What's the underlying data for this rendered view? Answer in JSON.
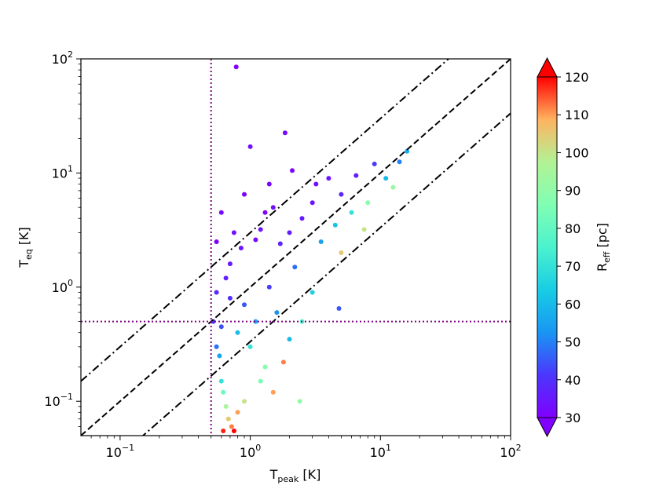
{
  "chart_data": {
    "type": "scatter",
    "xscale": "log",
    "yscale": "log",
    "xlim": [
      0.05,
      100
    ],
    "ylim": [
      0.05,
      100
    ],
    "xlabel": {
      "base": "T",
      "sub": "peak",
      "unit": " [K]"
    },
    "ylabel": {
      "base": "T",
      "sub": "eq",
      "unit": " [K]"
    },
    "x_ticks": [
      {
        "value": 0.1,
        "base": "10",
        "exp": "−1"
      },
      {
        "value": 1,
        "base": "10",
        "exp": "0"
      },
      {
        "value": 10,
        "base": "10",
        "exp": "1"
      },
      {
        "value": 100,
        "base": "10",
        "exp": "2"
      }
    ],
    "y_ticks": [
      {
        "value": 0.1,
        "base": "10",
        "exp": "−1"
      },
      {
        "value": 1,
        "base": "10",
        "exp": "0"
      },
      {
        "value": 10,
        "base": "10",
        "exp": "1"
      },
      {
        "value": 100,
        "base": "10",
        "exp": "2"
      }
    ],
    "reference_lines": [
      {
        "kind": "ratio",
        "ratio": 3,
        "style": "dashdot",
        "color": "#000000"
      },
      {
        "kind": "ratio",
        "ratio": 1,
        "style": "dashed",
        "color": "#000000"
      },
      {
        "kind": "ratio",
        "ratio": 0.333,
        "style": "dashdot",
        "color": "#000000"
      },
      {
        "kind": "vertical",
        "x": 0.5,
        "style": "dotted",
        "color": "#800080"
      },
      {
        "kind": "horizontal",
        "y": 0.5,
        "style": "dotted",
        "color": "#800080"
      }
    ],
    "colorbar": {
      "colormap": "rainbow",
      "label": {
        "base": "R",
        "sub": "eff",
        "unit": " [pc]"
      },
      "min": 30,
      "max": 120,
      "ticks": [
        "30",
        "40",
        "50",
        "60",
        "70",
        "80",
        "90",
        "100",
        "110",
        "120"
      ],
      "extend": "both"
    },
    "points": [
      {
        "x": 0.78,
        "y": 85,
        "c": 30
      },
      {
        "x": 1.85,
        "y": 22.5,
        "c": 32
      },
      {
        "x": 1.0,
        "y": 17,
        "c": 33
      },
      {
        "x": 0.9,
        "y": 6.5,
        "c": 31
      },
      {
        "x": 0.55,
        "y": 2.5,
        "c": 30
      },
      {
        "x": 0.6,
        "y": 4.5,
        "c": 32
      },
      {
        "x": 1.2,
        "y": 3.2,
        "c": 34
      },
      {
        "x": 1.5,
        "y": 5.0,
        "c": 33
      },
      {
        "x": 1.4,
        "y": 8.0,
        "c": 32
      },
      {
        "x": 2.1,
        "y": 10.5,
        "c": 31
      },
      {
        "x": 3.2,
        "y": 8.0,
        "c": 33
      },
      {
        "x": 4.0,
        "y": 9.0,
        "c": 34
      },
      {
        "x": 6.5,
        "y": 9.5,
        "c": 36
      },
      {
        "x": 0.7,
        "y": 1.6,
        "c": 35
      },
      {
        "x": 0.85,
        "y": 2.2,
        "c": 34
      },
      {
        "x": 1.1,
        "y": 2.6,
        "c": 32
      },
      {
        "x": 0.65,
        "y": 1.2,
        "c": 36
      },
      {
        "x": 0.75,
        "y": 3.0,
        "c": 33
      },
      {
        "x": 1.3,
        "y": 4.5,
        "c": 31
      },
      {
        "x": 2.5,
        "y": 4.0,
        "c": 35
      },
      {
        "x": 3.0,
        "y": 5.5,
        "c": 34
      },
      {
        "x": 2.0,
        "y": 3.0,
        "c": 36
      },
      {
        "x": 1.7,
        "y": 2.4,
        "c": 37
      },
      {
        "x": 5.0,
        "y": 6.5,
        "c": 38
      },
      {
        "x": 9.0,
        "y": 12.0,
        "c": 42
      },
      {
        "x": 16.0,
        "y": 15.5,
        "c": 57
      },
      {
        "x": 14.0,
        "y": 12.5,
        "c": 50
      },
      {
        "x": 11.0,
        "y": 9.0,
        "c": 60
      },
      {
        "x": 12.5,
        "y": 7.5,
        "c": 92
      },
      {
        "x": 8.0,
        "y": 5.5,
        "c": 88
      },
      {
        "x": 7.5,
        "y": 3.2,
        "c": 100
      },
      {
        "x": 5.0,
        "y": 2.0,
        "c": 105
      },
      {
        "x": 0.52,
        "y": 0.5,
        "c": 40
      },
      {
        "x": 0.6,
        "y": 0.45,
        "c": 44
      },
      {
        "x": 0.55,
        "y": 0.3,
        "c": 48
      },
      {
        "x": 0.58,
        "y": 0.25,
        "c": 55
      },
      {
        "x": 0.6,
        "y": 0.15,
        "c": 70
      },
      {
        "x": 0.62,
        "y": 0.12,
        "c": 82
      },
      {
        "x": 0.65,
        "y": 0.09,
        "c": 95
      },
      {
        "x": 0.68,
        "y": 0.07,
        "c": 105
      },
      {
        "x": 0.72,
        "y": 0.06,
        "c": 112
      },
      {
        "x": 0.62,
        "y": 0.055,
        "c": 118
      },
      {
        "x": 0.8,
        "y": 0.08,
        "c": 110
      },
      {
        "x": 0.9,
        "y": 0.1,
        "c": 100
      },
      {
        "x": 0.75,
        "y": 0.055,
        "c": 120
      },
      {
        "x": 1.2,
        "y": 0.15,
        "c": 85
      },
      {
        "x": 1.5,
        "y": 0.12,
        "c": 110
      },
      {
        "x": 1.3,
        "y": 0.2,
        "c": 88
      },
      {
        "x": 2.4,
        "y": 0.1,
        "c": 90
      },
      {
        "x": 1.8,
        "y": 0.22,
        "c": 112
      },
      {
        "x": 2.0,
        "y": 0.35,
        "c": 60
      },
      {
        "x": 2.5,
        "y": 0.5,
        "c": 75
      },
      {
        "x": 4.8,
        "y": 0.65,
        "c": 45
      },
      {
        "x": 3.0,
        "y": 0.9,
        "c": 65
      },
      {
        "x": 1.0,
        "y": 0.3,
        "c": 70
      },
      {
        "x": 1.1,
        "y": 0.5,
        "c": 55
      },
      {
        "x": 0.8,
        "y": 0.4,
        "c": 60
      },
      {
        "x": 1.6,
        "y": 0.6,
        "c": 52
      },
      {
        "x": 1.4,
        "y": 1.0,
        "c": 42
      },
      {
        "x": 2.2,
        "y": 1.5,
        "c": 48
      },
      {
        "x": 3.5,
        "y": 2.5,
        "c": 55
      },
      {
        "x": 4.5,
        "y": 3.5,
        "c": 62
      },
      {
        "x": 6.0,
        "y": 4.5,
        "c": 70
      },
      {
        "x": 0.9,
        "y": 0.7,
        "c": 45
      },
      {
        "x": 0.7,
        "y": 0.8,
        "c": 40
      },
      {
        "x": 0.55,
        "y": 0.9,
        "c": 38
      }
    ]
  }
}
